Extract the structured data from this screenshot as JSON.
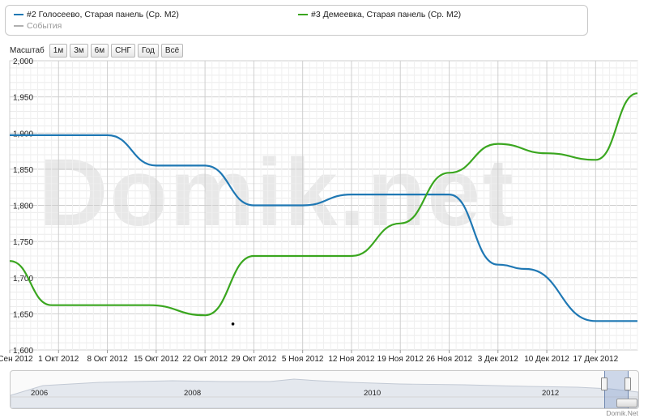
{
  "legend": {
    "items": [
      {
        "label": "#2 Голосеево, Старая панель (Ср. М2)",
        "color": "#1f78b4"
      },
      {
        "label": "#3 Демеевка, Старая панель (Ср. М2)",
        "color": "#3aa61f"
      },
      {
        "label": "События",
        "color": "#9a9a9a"
      }
    ]
  },
  "scale": {
    "label": "Масштаб",
    "buttons": [
      "1м",
      "3м",
      "6м",
      "СНГ",
      "Год",
      "Всё"
    ]
  },
  "watermark": "Domik.net",
  "navigator": {
    "years": [
      "2006",
      "2008",
      "2010",
      "2012"
    ]
  },
  "credit": "Domik.Net",
  "chart_data": {
    "type": "line",
    "ylim": [
      1600,
      2000
    ],
    "yticks": [
      1600,
      1650,
      1700,
      1750,
      1800,
      1850,
      1900,
      1950,
      2000
    ],
    "ytick_labels": [
      "1,600",
      "1,650",
      "1,700",
      "1,750",
      "1,800",
      "1,850",
      "1,900",
      "1,950",
      "2,000"
    ],
    "xlim": [
      "2012-09-24",
      "2012-12-23"
    ],
    "xticks": [
      "2012-09-24",
      "2012-10-01",
      "2012-10-08",
      "2012-10-15",
      "2012-10-22",
      "2012-10-29",
      "2012-11-05",
      "2012-11-12",
      "2012-11-19",
      "2012-11-26",
      "2012-12-03",
      "2012-12-10",
      "2012-12-17"
    ],
    "xtick_labels": [
      "24 Сен 2012",
      "1 Окт 2012",
      "8 Окт 2012",
      "15 Окт 2012",
      "22 Окт 2012",
      "29 Окт 2012",
      "5 Ноя 2012",
      "12 Ноя 2012",
      "19 Ноя 2012",
      "26 Ноя 2012",
      "3 Дек 2012",
      "10 Дек 2012",
      "17 Дек 2012"
    ],
    "grid": true,
    "series": [
      {
        "name": "#2 Голосеево, Старая панель (Ср. М2)",
        "color": "#1f78b4",
        "points": [
          [
            "2012-09-24",
            1897
          ],
          [
            "2012-10-08",
            1897
          ],
          [
            "2012-10-15",
            1855
          ],
          [
            "2012-10-22",
            1855
          ],
          [
            "2012-10-29",
            1800
          ],
          [
            "2012-11-05",
            1800
          ],
          [
            "2012-11-12",
            1815
          ],
          [
            "2012-11-26",
            1815
          ],
          [
            "2012-12-03",
            1718
          ],
          [
            "2012-12-07",
            1712
          ],
          [
            "2012-12-17",
            1640
          ],
          [
            "2012-12-23",
            1640
          ]
        ]
      },
      {
        "name": "#3 Демеевка, Старая панель (Ср. М2)",
        "color": "#3aa61f",
        "points": [
          [
            "2012-09-24",
            1723
          ],
          [
            "2012-09-30",
            1662
          ],
          [
            "2012-10-14",
            1662
          ],
          [
            "2012-10-22",
            1648
          ],
          [
            "2012-10-29",
            1730
          ],
          [
            "2012-11-12",
            1730
          ],
          [
            "2012-11-19",
            1775
          ],
          [
            "2012-11-26",
            1845
          ],
          [
            "2012-12-03",
            1885
          ],
          [
            "2012-12-10",
            1872
          ],
          [
            "2012-12-17",
            1863
          ],
          [
            "2012-12-23",
            1955
          ]
        ]
      }
    ],
    "markers": [
      {
        "date": "2012-10-26",
        "value": 1636
      }
    ]
  }
}
